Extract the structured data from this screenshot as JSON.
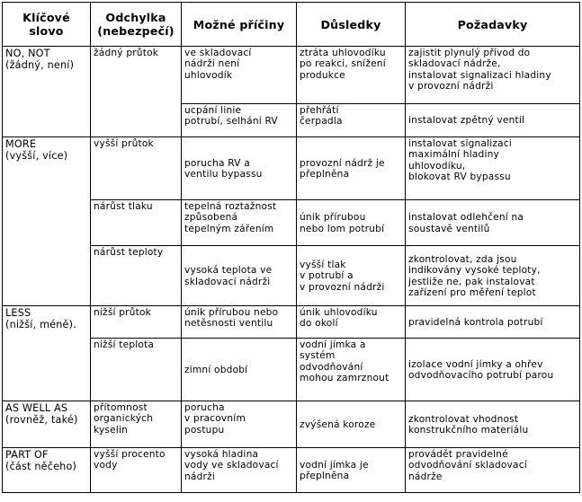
{
  "headers": {
    "keyword": "Klíčové\nslovo",
    "deviation": "Odchylka\n(nebezpečí)",
    "causes": "Možné příčiny",
    "consequences": "Důsledky",
    "requirements": "Požadavky"
  },
  "groups": [
    {
      "keyword": "NO, NOT\n(žádný, není)",
      "deviations": [
        {
          "deviation": "žádný průtok",
          "rows": [
            {
              "cause": "ve skladovací\nnádrži není\nuhlovodík",
              "consequence": "ztráta uhlovodíku\npo reakci, snížení\nprodukce",
              "requirement": "zajistit plynulý přívod do\nskladovací nádrže,\ninstalovat signalizaci hladiny\nv provozní nádrži"
            },
            {
              "cause": "ucpání linie\npotrubí, selhání RV",
              "consequence": "přehřátí\nčerpadla",
              "requirement": "instalovat zpětný ventil"
            }
          ]
        }
      ]
    },
    {
      "keyword": "MORE\n(vyšší, více)",
      "deviations": [
        {
          "deviation": "vyšší průtok",
          "rows": [
            {
              "cause": "porucha RV a\nventilu bypassu",
              "consequence": "provozní nádrž je\npřeplněna",
              "requirement": "instalovat signalizaci\nmaximální hladiny\nuhlovodíku,\nblokovat RV bypassu"
            }
          ]
        },
        {
          "deviation": "nárůst tlaku",
          "rows": [
            {
              "cause": "tepelná roztažnost\nzpůsobená\ntepelným zářením",
              "consequence": "únik přírubou\nnebo lom potrubí",
              "requirement": "instalovat odlehčení na\nsoustavě ventilů"
            }
          ]
        },
        {
          "deviation": "nárůst teploty",
          "rows": [
            {
              "cause": "vysoká teplota ve\nskladovací nádrži",
              "consequence": "vyšší tlak\nv potrubí a\nv provozní nádrži",
              "requirement": "zkontrolovat, zda jsou\nindikovány vysoké teploty,\njestliže ne, pak instalovat\nzařízení pro měření teplot"
            }
          ]
        }
      ]
    },
    {
      "keyword": "LESS\n(nižší, méně).",
      "deviations": [
        {
          "deviation": "nižší průtok",
          "rows": [
            {
              "cause": "únik přírubou nebo\nnetěsnosti ventilu",
              "consequence": "únik uhlovodíku\ndo okolí",
              "requirement": "pravidelná kontrola potrubí"
            }
          ]
        },
        {
          "deviation": "nižší teplota",
          "rows": [
            {
              "cause": "zimní období",
              "consequence": "vodní jímka a\nsystém\nodvodňování\nmohou zamrznout",
              "requirement": "izolace vodní jímky a ohřev\nodvodňovacího potrubí parou"
            }
          ]
        }
      ]
    },
    {
      "keyword": "AS WELL AS\n(rovněž, také)",
      "deviations": [
        {
          "deviation": "přítomnost\norganických\nkyselin",
          "rows": [
            {
              "cause": "porucha\nv pracovním\npostupu",
              "consequence": "zvýšená koroze",
              "requirement": "zkontrolovat vhodnost\nkonstrukčního materiálu"
            }
          ]
        }
      ]
    },
    {
      "keyword": "PART OF\n(část něčeho)",
      "deviations": [
        {
          "deviation": "vyšší procento\nvody",
          "rows": [
            {
              "cause": "vysoká hladina\nvody ve skladovací\nnádrži",
              "consequence": "vodní jímka je\npřeplněna",
              "requirement": "provádět pravidelné\nodvodňování skladovací\nnádrže"
            }
          ]
        }
      ]
    }
  ]
}
